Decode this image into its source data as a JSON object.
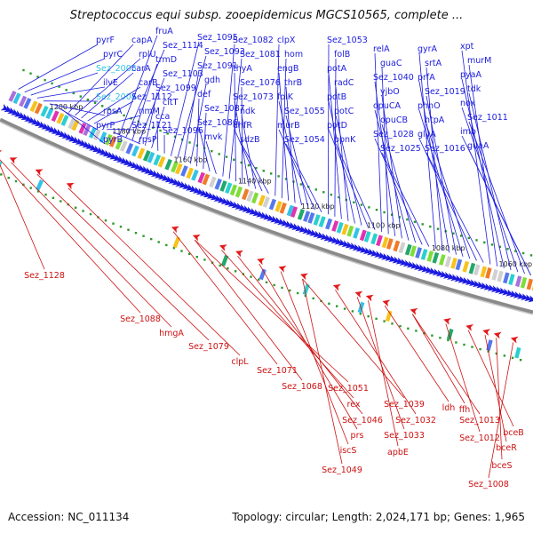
{
  "title": "Streptococcus equi subsp. zooepidemicus MGCS10565, complete ...",
  "footer": {
    "accession": "Accession: NC_011134",
    "topology": "Topology: circular; Length: 2,024,171 bp; Genes: 1,965"
  },
  "colors": {
    "forward_gene": "#1a1adf",
    "reverse_gene": "#e31a1a",
    "forward_label": "#1a1adf",
    "highlight_label": "#33c3e6",
    "reverse_label": "#cc1111",
    "backbone": "#8a8a8a",
    "tick_marker": "#2a9a2a"
  },
  "map": {
    "kbp_labels": [
      "1200 kbp",
      "1180 kbp",
      "1160 kbp",
      "1140 kbp",
      "1120 kbp",
      "1100 kbp",
      "1080 kbp",
      "1060 kbp"
    ],
    "forward_labels": [
      {
        "text": "pyrF"
      },
      {
        "text": "pyrC"
      },
      {
        "text": "Sez_2005",
        "highlight": true
      },
      {
        "text": "ilvE"
      },
      {
        "text": "Sez_2004",
        "highlight": true
      },
      {
        "text": "rpsA"
      },
      {
        "text": "pyrP"
      },
      {
        "text": "pyrB"
      },
      {
        "text": "capA"
      },
      {
        "text": "rplU"
      },
      {
        "text": "carA"
      },
      {
        "text": "carB"
      },
      {
        "text": "Sez_1112"
      },
      {
        "text": "rimM"
      },
      {
        "text": "Sez_1121"
      },
      {
        "text": "rpsP"
      },
      {
        "text": "fruA"
      },
      {
        "text": "Sez_1114"
      },
      {
        "text": "trmD"
      },
      {
        "text": "Sez_1103"
      },
      {
        "text": "Sez_1099"
      },
      {
        "text": "citT"
      },
      {
        "text": "cca"
      },
      {
        "text": "Sez_1096"
      },
      {
        "text": "Sez_1095"
      },
      {
        "text": "Sez_1093"
      },
      {
        "text": "Sez_1091"
      },
      {
        "text": "gdh"
      },
      {
        "text": "def"
      },
      {
        "text": "Sez_1087"
      },
      {
        "text": "Sez_1086"
      },
      {
        "text": "mvk"
      },
      {
        "text": "Sez_1082"
      },
      {
        "text": "Sez_1081"
      },
      {
        "text": "thyA"
      },
      {
        "text": "Sez_1076"
      },
      {
        "text": "Sez_1073"
      },
      {
        "text": "ndk"
      },
      {
        "text": "dhfR"
      },
      {
        "text": "sdzB"
      },
      {
        "text": "clpX"
      },
      {
        "text": "hom"
      },
      {
        "text": "engB"
      },
      {
        "text": "thrB"
      },
      {
        "text": "folK"
      },
      {
        "text": "Sez_1055"
      },
      {
        "text": "murB"
      },
      {
        "text": "Sez_1054"
      },
      {
        "text": "Sez_1053"
      },
      {
        "text": "folB"
      },
      {
        "text": "potA"
      },
      {
        "text": "radC"
      },
      {
        "text": "potB"
      },
      {
        "text": "potC"
      },
      {
        "text": "potD"
      },
      {
        "text": "ppnK"
      },
      {
        "text": "relA"
      },
      {
        "text": "guaC"
      },
      {
        "text": "Sez_1040"
      },
      {
        "text": "yjbO"
      },
      {
        "text": "opuCA"
      },
      {
        "text": "opuCB"
      },
      {
        "text": "Sez_1028"
      },
      {
        "text": "Sez_1025"
      },
      {
        "text": "gyrA"
      },
      {
        "text": "srtA"
      },
      {
        "text": "prfA"
      },
      {
        "text": "Sez_1019"
      },
      {
        "text": "phnO"
      },
      {
        "text": "htpA"
      },
      {
        "text": "glyA"
      },
      {
        "text": "Sez_1016"
      },
      {
        "text": "xpt"
      },
      {
        "text": "murM"
      },
      {
        "text": "pyaA"
      },
      {
        "text": "tdk"
      },
      {
        "text": "nox"
      },
      {
        "text": "Sez_1011"
      },
      {
        "text": "imb"
      },
      {
        "text": "guaA"
      }
    ],
    "reverse_labels": [
      {
        "text": "Sez_1128"
      },
      {
        "text": "Sez_1088"
      },
      {
        "text": "hmgA"
      },
      {
        "text": "Sez_1079"
      },
      {
        "text": "clpL"
      },
      {
        "text": "Sez_1071"
      },
      {
        "text": "Sez_1068"
      },
      {
        "text": "Sez_1051"
      },
      {
        "text": "rex"
      },
      {
        "text": "Sez_1046"
      },
      {
        "text": "prs"
      },
      {
        "text": "iscS"
      },
      {
        "text": "Sez_1049"
      },
      {
        "text": "Sez_1039"
      },
      {
        "text": "Sez_1032"
      },
      {
        "text": "Sez_1033"
      },
      {
        "text": "apbE"
      },
      {
        "text": "ldh"
      },
      {
        "text": "ffh"
      },
      {
        "text": "Sez_1013"
      },
      {
        "text": "Sez_1012"
      },
      {
        "text": "bceB"
      },
      {
        "text": "bceR"
      },
      {
        "text": "bceS"
      },
      {
        "text": "Sez_1008"
      }
    ]
  }
}
